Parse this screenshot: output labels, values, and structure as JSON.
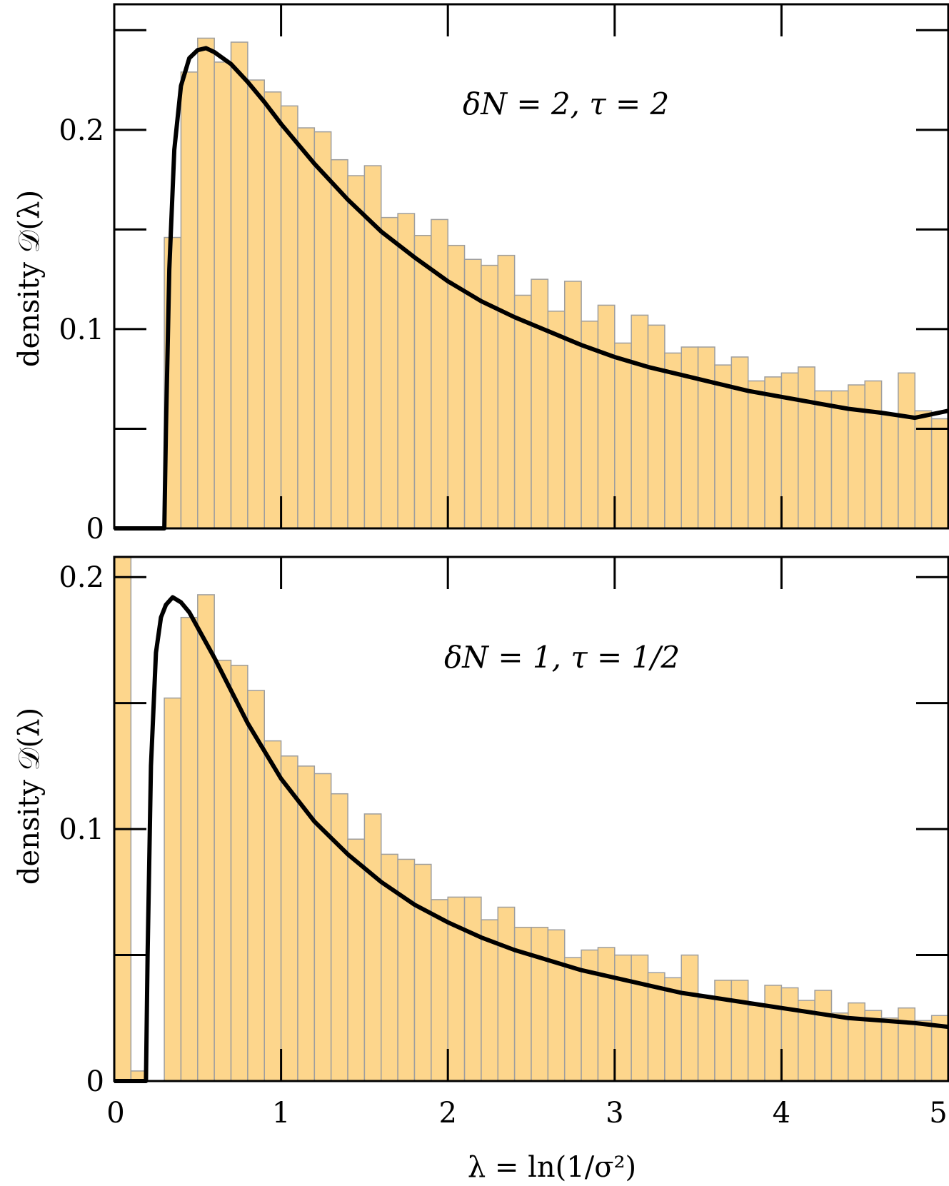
{
  "chart_data": [
    {
      "type": "bar",
      "ylabel": "density 𝒟(λ)",
      "annotation": "δN = 2,   τ = 2",
      "xlim": [
        0,
        5
      ],
      "ylim": [
        0,
        0.263
      ],
      "ytick_labels": [
        "0",
        "0.1",
        "0.2"
      ],
      "yticks": [
        0,
        0.1,
        0.2
      ],
      "colors": {
        "bar_fill": "#fdd68c",
        "bar_edge": "#9e9e9e",
        "curve": "#000000"
      },
      "bin_width": 0.1,
      "bin_starts": [
        0.3,
        0.4,
        0.5,
        0.6,
        0.7,
        0.8,
        0.9,
        1.0,
        1.1,
        1.2,
        1.3,
        1.4,
        1.5,
        1.6,
        1.7,
        1.8,
        1.9,
        2.0,
        2.1,
        2.2,
        2.3,
        2.4,
        2.5,
        2.6,
        2.7,
        2.8,
        2.9,
        3.0,
        3.1,
        3.2,
        3.3,
        3.4,
        3.5,
        3.6,
        3.7,
        3.8,
        3.9,
        4.0,
        4.1,
        4.2,
        4.3,
        4.4,
        4.5,
        4.6,
        4.7,
        4.8,
        4.9
      ],
      "values": [
        0.146,
        0.229,
        0.246,
        0.234,
        0.244,
        0.225,
        0.219,
        0.212,
        0.201,
        0.199,
        0.185,
        0.177,
        0.182,
        0.156,
        0.158,
        0.147,
        0.155,
        0.142,
        0.135,
        0.132,
        0.137,
        0.117,
        0.125,
        0.109,
        0.124,
        0.104,
        0.112,
        0.093,
        0.107,
        0.102,
        0.088,
        0.091,
        0.091,
        0.082,
        0.086,
        0.074,
        0.076,
        0.078,
        0.081,
        0.069,
        0.069,
        0.072,
        0.074,
        0.057,
        0.078,
        0.059,
        0.055
      ],
      "curve": {
        "x": [
          0.0,
          0.3,
          0.31,
          0.33,
          0.36,
          0.4,
          0.45,
          0.5,
          0.55,
          0.6,
          0.7,
          0.8,
          0.9,
          1.0,
          1.2,
          1.4,
          1.6,
          1.8,
          2.0,
          2.2,
          2.4,
          2.6,
          2.8,
          3.0,
          3.2,
          3.4,
          3.6,
          3.8,
          4.0,
          4.2,
          4.4,
          4.6,
          4.8,
          5.0
        ],
        "y": [
          0.0,
          0.0,
          0.05,
          0.13,
          0.19,
          0.222,
          0.236,
          0.24,
          0.241,
          0.239,
          0.233,
          0.224,
          0.214,
          0.203,
          0.183,
          0.165,
          0.149,
          0.136,
          0.124,
          0.114,
          0.106,
          0.099,
          0.092,
          0.086,
          0.081,
          0.077,
          0.073,
          0.069,
          0.066,
          0.063,
          0.06,
          0.058,
          0.0555,
          0.059
        ]
      }
    },
    {
      "type": "bar",
      "ylabel": "density 𝒟(λ)",
      "xlabel": "λ = ln(1/σ²)",
      "annotation": "δN = 1,   τ = 1/2",
      "xlim": [
        0,
        5
      ],
      "ylim": [
        0,
        0.208
      ],
      "xtick_labels": [
        "0",
        "1",
        "2",
        "3",
        "4",
        "5"
      ],
      "xticks": [
        0,
        1,
        2,
        3,
        4,
        5
      ],
      "ytick_labels": [
        "0",
        "0.1",
        "0.2"
      ],
      "yticks": [
        0,
        0.1,
        0.2
      ],
      "colors": {
        "bar_fill": "#fdd68c",
        "bar_edge": "#9e9e9e",
        "curve": "#000000"
      },
      "bin_width": 0.1,
      "bin_starts": [
        0.0,
        0.1,
        0.2,
        0.3,
        0.4,
        0.5,
        0.6,
        0.7,
        0.8,
        0.9,
        1.0,
        1.1,
        1.2,
        1.3,
        1.4,
        1.5,
        1.6,
        1.7,
        1.8,
        1.9,
        2.0,
        2.1,
        2.2,
        2.3,
        2.4,
        2.5,
        2.6,
        2.7,
        2.8,
        2.9,
        3.0,
        3.1,
        3.2,
        3.3,
        3.4,
        3.5,
        3.6,
        3.7,
        3.8,
        3.9,
        4.0,
        4.1,
        4.2,
        4.3,
        4.4,
        4.5,
        4.6,
        4.7,
        4.8,
        4.9
      ],
      "values": [
        0.208,
        0.004,
        0.0,
        0.152,
        0.184,
        0.193,
        0.167,
        0.165,
        0.155,
        0.135,
        0.129,
        0.125,
        0.122,
        0.114,
        0.096,
        0.106,
        0.09,
        0.088,
        0.086,
        0.072,
        0.073,
        0.073,
        0.064,
        0.069,
        0.061,
        0.061,
        0.06,
        0.049,
        0.052,
        0.053,
        0.05,
        0.05,
        0.043,
        0.041,
        0.05,
        0.033,
        0.04,
        0.04,
        0.03,
        0.038,
        0.037,
        0.032,
        0.036,
        0.027,
        0.031,
        0.028,
        0.025,
        0.029,
        0.024,
        0.026
      ],
      "curve": {
        "x": [
          0.0,
          0.19,
          0.2,
          0.22,
          0.25,
          0.28,
          0.31,
          0.35,
          0.4,
          0.45,
          0.5,
          0.6,
          0.7,
          0.8,
          0.9,
          1.0,
          1.2,
          1.4,
          1.6,
          1.8,
          2.0,
          2.2,
          2.4,
          2.6,
          2.8,
          3.0,
          3.2,
          3.4,
          3.6,
          3.8,
          4.0,
          4.2,
          4.4,
          4.6,
          4.8,
          5.0
        ],
        "y": [
          0.0,
          0.0,
          0.05,
          0.125,
          0.17,
          0.184,
          0.189,
          0.192,
          0.19,
          0.186,
          0.18,
          0.168,
          0.155,
          0.142,
          0.131,
          0.12,
          0.103,
          0.09,
          0.079,
          0.07,
          0.063,
          0.057,
          0.052,
          0.048,
          0.044,
          0.041,
          0.038,
          0.035,
          0.033,
          0.031,
          0.029,
          0.027,
          0.025,
          0.024,
          0.023,
          0.0215
        ]
      }
    }
  ]
}
